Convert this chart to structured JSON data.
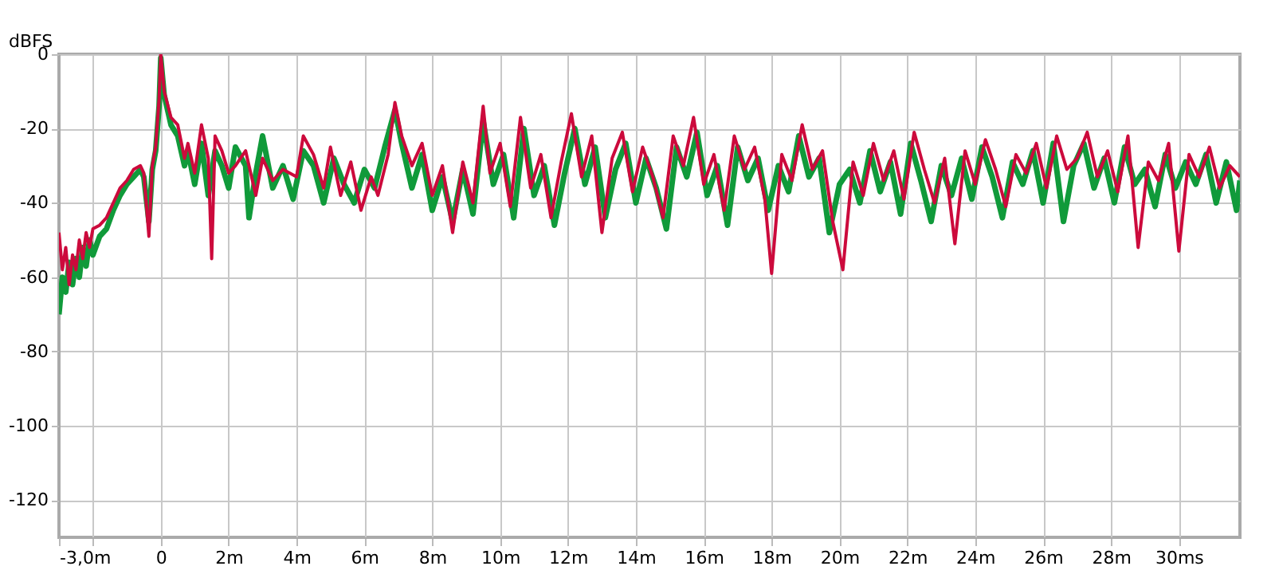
{
  "chart_data": {
    "type": "line",
    "ylabel": "dBFS",
    "grid": true,
    "xlim": [
      -3.0,
      31.8
    ],
    "xticks": [
      {
        "value": -3,
        "label": "-3,0m"
      },
      {
        "value": -2,
        "label": null
      },
      {
        "value": 0,
        "label": "0"
      },
      {
        "value": 2,
        "label": "2m"
      },
      {
        "value": 4,
        "label": "4m"
      },
      {
        "value": 6,
        "label": "6m"
      },
      {
        "value": 8,
        "label": "8m"
      },
      {
        "value": 10,
        "label": "10m"
      },
      {
        "value": 12,
        "label": "12m"
      },
      {
        "value": 14,
        "label": "14m"
      },
      {
        "value": 16,
        "label": "16m"
      },
      {
        "value": 18,
        "label": "18m"
      },
      {
        "value": 20,
        "label": "20m"
      },
      {
        "value": 22,
        "label": "22m"
      },
      {
        "value": 24,
        "label": "24m"
      },
      {
        "value": 26,
        "label": "26m"
      },
      {
        "value": 28,
        "label": "28m"
      },
      {
        "value": 30,
        "label": "30ms"
      }
    ],
    "ylim": [
      -130,
      0
    ],
    "yticks": [
      0,
      -20,
      -40,
      -60,
      -80,
      -100,
      -120
    ],
    "series": [
      {
        "color": "#109a3a",
        "x": [
          -3.0,
          -2.9,
          -2.8,
          -2.7,
          -2.6,
          -2.5,
          -2.4,
          -2.3,
          -2.2,
          -2.1,
          -2.0,
          -1.8,
          -1.6,
          -1.4,
          -1.2,
          -1.0,
          -0.8,
          -0.6,
          -0.5,
          -0.35,
          -0.25,
          -0.15,
          -0.05,
          0,
          0.1,
          0.3,
          0.5,
          0.7,
          0.8,
          1.0,
          1.2,
          1.4,
          1.6,
          1.8,
          2.0,
          2.2,
          2.5,
          2.6,
          2.8,
          3.0,
          3.3,
          3.6,
          3.9,
          4.2,
          4.5,
          4.8,
          5.1,
          5.4,
          5.7,
          6.0,
          6.3,
          6.6,
          6.9,
          7.1,
          7.4,
          7.7,
          8.0,
          8.3,
          8.6,
          8.9,
          9.2,
          9.5,
          9.8,
          10.1,
          10.4,
          10.7,
          11.0,
          11.3,
          11.6,
          11.9,
          12.2,
          12.5,
          12.8,
          13.1,
          13.4,
          13.7,
          14.0,
          14.3,
          14.6,
          14.9,
          15.2,
          15.5,
          15.8,
          16.1,
          16.4,
          16.7,
          17.0,
          17.3,
          17.6,
          17.9,
          18.2,
          18.5,
          18.8,
          19.1,
          19.4,
          19.7,
          20.0,
          20.3,
          20.6,
          20.9,
          21.2,
          21.5,
          21.8,
          22.1,
          22.4,
          22.7,
          23.0,
          23.3,
          23.6,
          23.9,
          24.2,
          24.5,
          24.8,
          25.1,
          25.4,
          25.7,
          26.0,
          26.3,
          26.6,
          26.9,
          27.2,
          27.5,
          27.8,
          28.1,
          28.4,
          28.7,
          29.0,
          29.3,
          29.6,
          29.9,
          30.2,
          30.5,
          30.8,
          31.1,
          31.4,
          31.7,
          31.8
        ],
        "values": [
          -70,
          -60,
          -64,
          -56,
          -62,
          -55,
          -60,
          -52,
          -57,
          -50,
          -54,
          -49,
          -47,
          -42,
          -38,
          -35,
          -33,
          -31,
          -33,
          -45,
          -31,
          -26,
          -14,
          -1,
          -11,
          -19,
          -22,
          -30,
          -26,
          -35,
          -24,
          -38,
          -26,
          -30,
          -36,
          -25,
          -30,
          -44,
          -32,
          -22,
          -36,
          -30,
          -39,
          -26,
          -30,
          -40,
          -28,
          -35,
          -40,
          -31,
          -36,
          -25,
          -15,
          -24,
          -36,
          -27,
          -42,
          -33,
          -45,
          -31,
          -43,
          -18,
          -35,
          -27,
          -44,
          -20,
          -38,
          -30,
          -46,
          -32,
          -20,
          -35,
          -25,
          -44,
          -31,
          -24,
          -40,
          -28,
          -36,
          -47,
          -25,
          -33,
          -21,
          -38,
          -30,
          -46,
          -25,
          -34,
          -28,
          -42,
          -30,
          -37,
          -22,
          -33,
          -28,
          -48,
          -35,
          -31,
          -40,
          -26,
          -37,
          -29,
          -43,
          -24,
          -34,
          -45,
          -30,
          -38,
          -28,
          -39,
          -25,
          -33,
          -44,
          -29,
          -35,
          -26,
          -40,
          -24,
          -45,
          -30,
          -24,
          -36,
          -28,
          -40,
          -25,
          -35,
          -31,
          -41,
          -27,
          -36,
          -29,
          -35,
          -27,
          -40,
          -29,
          -42,
          -34
        ]
      },
      {
        "color": "#cc0a3c",
        "x": [
          -3.0,
          -2.9,
          -2.8,
          -2.7,
          -2.6,
          -2.5,
          -2.4,
          -2.3,
          -2.2,
          -2.1,
          -2.0,
          -1.8,
          -1.6,
          -1.4,
          -1.2,
          -1.0,
          -0.8,
          -0.6,
          -0.5,
          -0.35,
          -0.25,
          -0.15,
          -0.05,
          0,
          0.1,
          0.3,
          0.5,
          0.7,
          0.8,
          1.0,
          1.2,
          1.4,
          1.5,
          1.6,
          1.8,
          2.0,
          2.2,
          2.5,
          2.8,
          3.0,
          3.3,
          3.6,
          4.0,
          4.2,
          4.5,
          4.8,
          5.0,
          5.3,
          5.6,
          5.9,
          6.2,
          6.4,
          6.7,
          6.9,
          7.1,
          7.4,
          7.7,
          8.0,
          8.3,
          8.6,
          8.9,
          9.2,
          9.5,
          9.7,
          10.0,
          10.3,
          10.6,
          10.9,
          11.2,
          11.5,
          11.8,
          12.1,
          12.4,
          12.7,
          13.0,
          13.3,
          13.6,
          13.9,
          14.2,
          14.5,
          14.8,
          15.1,
          15.4,
          15.7,
          16.0,
          16.3,
          16.6,
          16.9,
          17.2,
          17.5,
          17.8,
          18.0,
          18.3,
          18.6,
          18.9,
          19.2,
          19.5,
          19.8,
          20.1,
          20.4,
          20.7,
          21.0,
          21.3,
          21.6,
          21.9,
          22.2,
          22.5,
          22.8,
          23.1,
          23.4,
          23.7,
          24.0,
          24.3,
          24.6,
          24.9,
          25.2,
          25.5,
          25.8,
          26.1,
          26.4,
          26.7,
          27.0,
          27.3,
          27.6,
          27.9,
          28.2,
          28.5,
          28.8,
          29.1,
          29.4,
          29.7,
          30.0,
          30.3,
          30.6,
          30.9,
          31.2,
          31.5,
          31.8
        ],
        "values": [
          -48,
          -58,
          -52,
          -62,
          -54,
          -58,
          -50,
          -55,
          -48,
          -52,
          -47,
          -46,
          -44,
          -40,
          -36,
          -34,
          -31,
          -30,
          -32,
          -49,
          -30,
          -25,
          -12,
          0,
          -10,
          -17,
          -19,
          -28,
          -24,
          -32,
          -19,
          -28,
          -55,
          -22,
          -26,
          -32,
          -30,
          -26,
          -38,
          -28,
          -34,
          -31,
          -33,
          -22,
          -27,
          -36,
          -25,
          -38,
          -29,
          -42,
          -33,
          -38,
          -27,
          -13,
          -22,
          -30,
          -24,
          -38,
          -30,
          -48,
          -29,
          -40,
          -14,
          -32,
          -24,
          -41,
          -17,
          -36,
          -27,
          -44,
          -29,
          -16,
          -33,
          -22,
          -48,
          -28,
          -21,
          -37,
          -25,
          -33,
          -44,
          -22,
          -30,
          -17,
          -35,
          -27,
          -42,
          -22,
          -31,
          -25,
          -39,
          -59,
          -27,
          -34,
          -19,
          -31,
          -26,
          -45,
          -58,
          -29,
          -38,
          -24,
          -34,
          -26,
          -39,
          -21,
          -31,
          -40,
          -28,
          -51,
          -26,
          -35,
          -23,
          -31,
          -41,
          -27,
          -32,
          -24,
          -36,
          -22,
          -31,
          -28,
          -21,
          -33,
          -26,
          -37,
          -22,
          -52,
          -29,
          -34,
          -24,
          -53,
          -27,
          -33,
          -25,
          -36,
          -30,
          -33
        ]
      }
    ]
  }
}
